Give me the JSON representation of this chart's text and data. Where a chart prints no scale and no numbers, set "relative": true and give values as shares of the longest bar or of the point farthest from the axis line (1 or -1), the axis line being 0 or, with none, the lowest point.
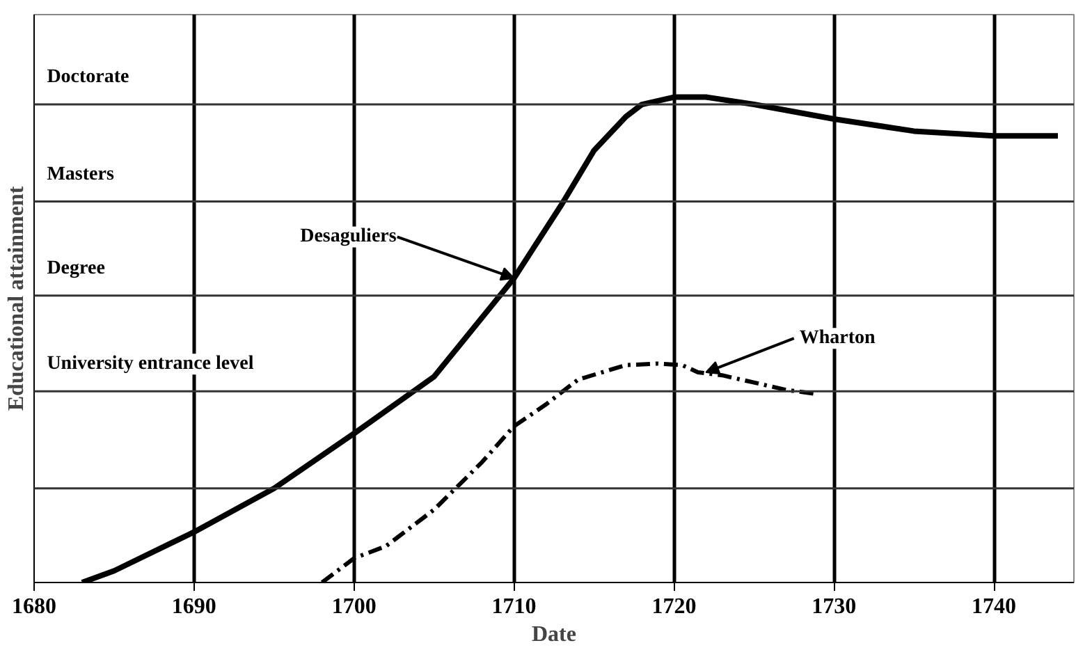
{
  "chart_data": {
    "type": "line",
    "xlabel": "Date",
    "ylabel": "Educational attainment",
    "relative": true,
    "xlim": [
      1680,
      1745
    ],
    "xticks": [
      1680,
      1690,
      1700,
      1710,
      1720,
      1730,
      1740
    ],
    "grid": "x",
    "series": [
      {
        "color": "#000000",
        "line_style": "solid",
        "x": [
          1683,
          1685,
          1690,
          1695,
          1700,
          1705,
          1710,
          1713,
          1715,
          1717,
          1718,
          1720,
          1722,
          1725,
          1730,
          1735,
          1740,
          1744
        ],
        "values": [
          0,
          0.024,
          0.104,
          0.194,
          0.307,
          0.424,
          0.627,
          0.78,
          0.89,
          0.96,
          0.985,
          1.0,
          1.0,
          0.985,
          0.955,
          0.93,
          0.92,
          0.92
        ]
      },
      {
        "color": "#000000",
        "line_style": "dashed",
        "x": [
          1698,
          1700,
          1702,
          1705,
          1708,
          1710,
          1712,
          1714,
          1717,
          1719,
          1720.5,
          1721.5,
          1723,
          1725,
          1727,
          1729
        ],
        "values": [
          0,
          0.05,
          0.075,
          0.15,
          0.248,
          0.322,
          0.367,
          0.418,
          0.448,
          0.451,
          0.448,
          0.433,
          0.427,
          0.412,
          0.397,
          0.388
        ]
      }
    ],
    "ref_lines": [
      {
        "axis": "y",
        "value": 0.194,
        "label": null
      },
      {
        "axis": "y",
        "value": 0.394,
        "label": "University entrance level"
      },
      {
        "axis": "y",
        "value": 0.591,
        "label": "Degree"
      },
      {
        "axis": "y",
        "value": 0.785,
        "label": "Masters"
      },
      {
        "axis": "y",
        "value": 0.985,
        "label": "Doctorate"
      }
    ],
    "annotations": [
      {
        "text": "Desaguliers",
        "x": 1710,
        "y": 0.627
      },
      {
        "text": "Wharton",
        "x": 1722,
        "y": 0.433
      }
    ]
  }
}
